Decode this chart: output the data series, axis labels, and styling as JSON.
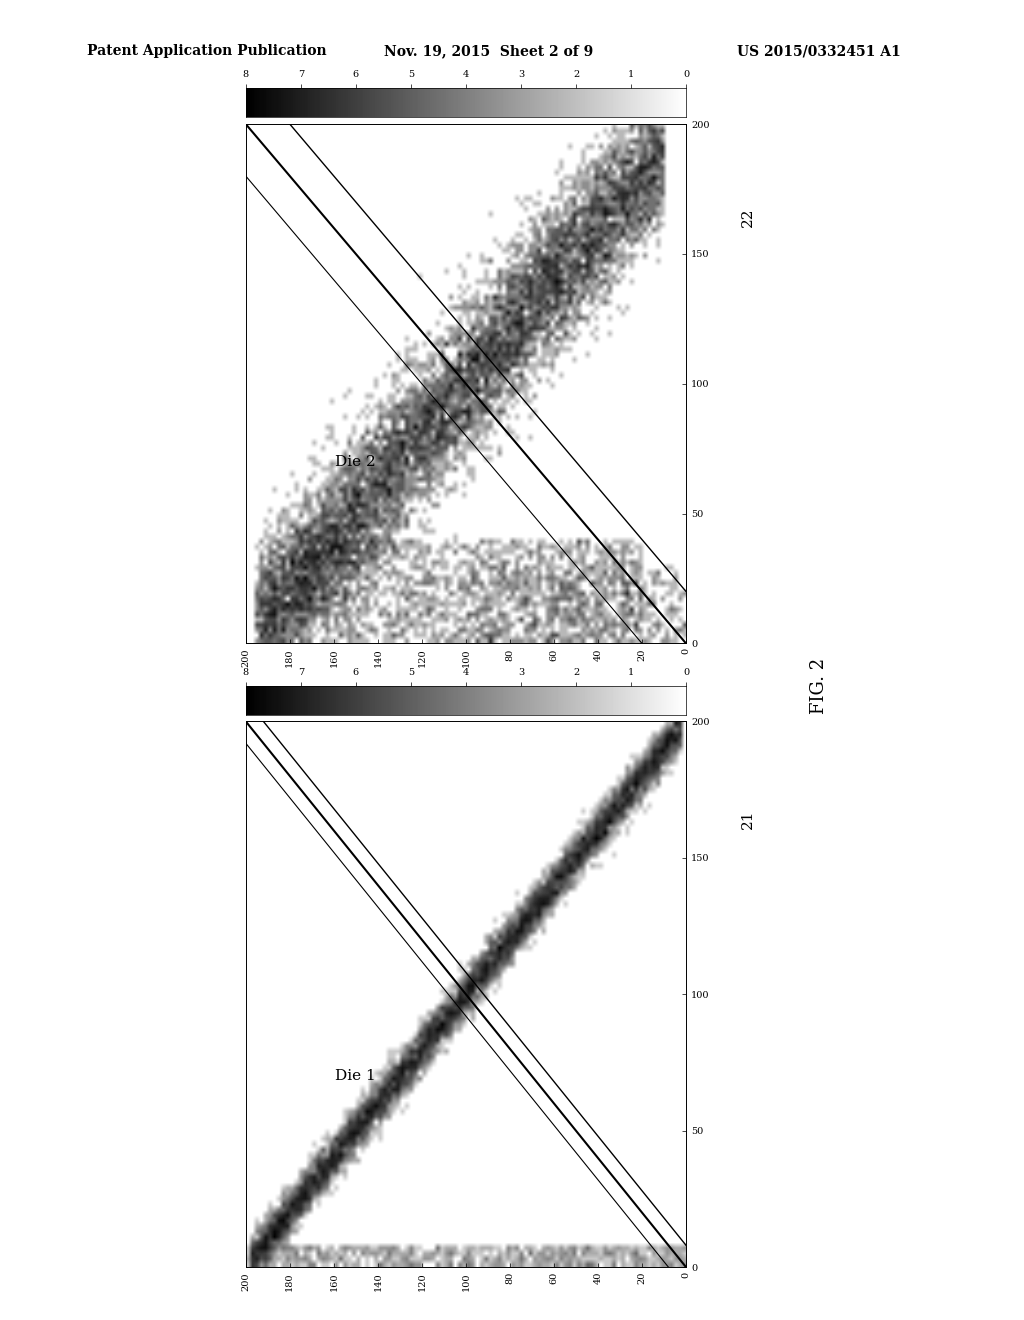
{
  "title_text": "Patent Application Publication",
  "title_date": "Nov. 19, 2015  Sheet 2 of 9",
  "title_patent": "US 2015/0332451 A1",
  "fig_label": "FIG. 2",
  "plot1_label": "Die 1",
  "plot1_number": "21",
  "plot2_label": "Die 2",
  "plot2_number": "22",
  "colorbar_ticks": [
    0,
    1,
    2,
    3,
    4,
    5,
    6,
    7,
    8
  ],
  "axis_ticks_x": [
    200,
    180,
    160,
    140,
    120,
    100,
    80,
    60,
    40,
    20,
    0
  ],
  "axis_ticks_y": [
    0,
    50,
    100,
    150,
    200
  ],
  "xmin": 0,
  "xmax": 200,
  "ymin": 0,
  "ymax": 200,
  "background_color": "#ffffff",
  "colormap": "gray_r",
  "seed1": 42,
  "seed2": 123
}
